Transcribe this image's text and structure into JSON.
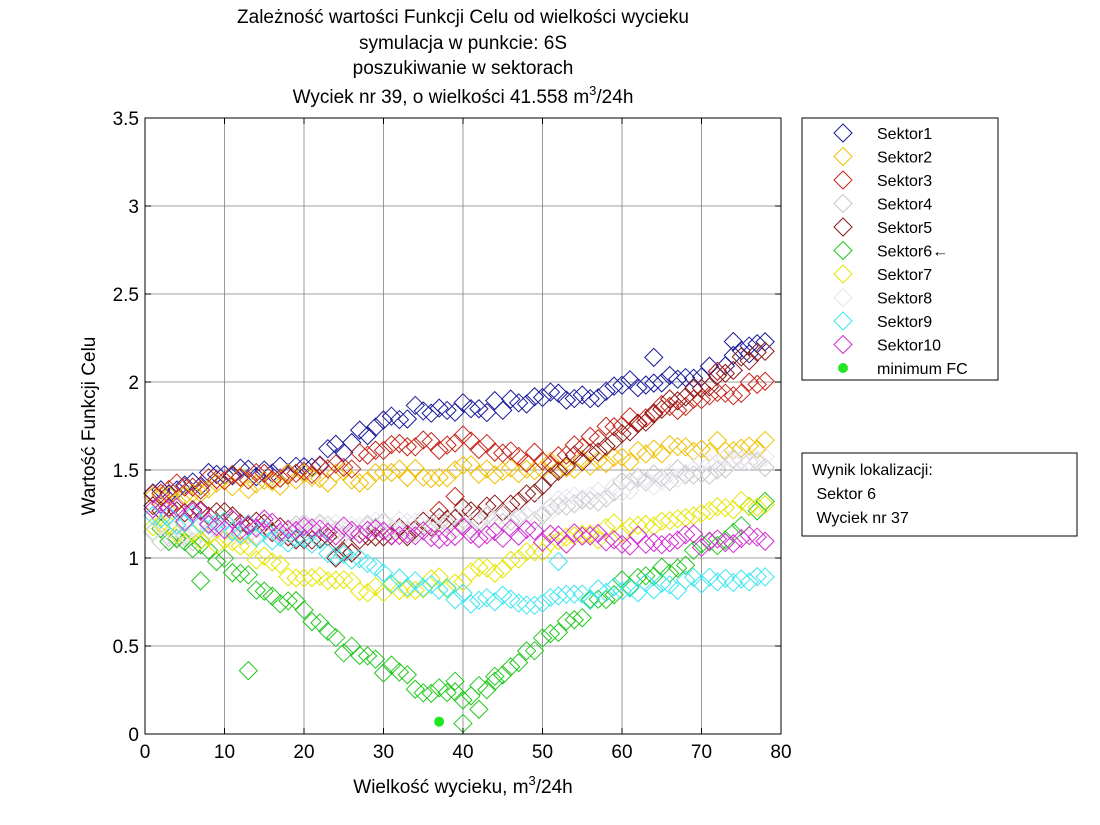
{
  "chart_data": {
    "type": "scatter",
    "title_lines": [
      "Zależność wartości Funkcji Celu od wielkości wycieku",
      "symulacja w punkcie: 6S",
      "poszukiwanie w sektorach"
    ],
    "title_last": {
      "prefix": "Wyciek nr 39, o wielkości 41.558 m",
      "sup": "3",
      "suffix": "/24h"
    },
    "xlabel": {
      "prefix": "Wielkość wycieku, m",
      "sup": "3",
      "suffix": "/24h"
    },
    "ylabel": "Wartość Funkcji Celu",
    "xlim": [
      0,
      80
    ],
    "ylim": [
      0,
      3.5
    ],
    "xticks": [
      0,
      10,
      20,
      30,
      40,
      50,
      60,
      70,
      80
    ],
    "yticks": [
      0,
      0.5,
      1,
      1.5,
      2,
      2.5,
      3,
      3.5
    ],
    "ytick_labels": [
      "0",
      "0.5",
      "1",
      "1.5",
      "2",
      "2.5",
      "3",
      "3.5"
    ],
    "grid": true,
    "legend_placement": "outside-top-right",
    "series": [
      {
        "name": "Sektor1",
        "color": "#1a1a9c",
        "marker": "diamond",
        "anchors": [
          [
            1,
            1.37
          ],
          [
            10,
            1.48
          ],
          [
            20,
            1.52
          ],
          [
            25,
            1.63
          ],
          [
            30,
            1.78
          ],
          [
            35,
            1.84
          ],
          [
            40,
            1.86
          ],
          [
            45,
            1.86
          ],
          [
            50,
            1.92
          ],
          [
            55,
            1.93
          ],
          [
            60,
            1.97
          ],
          [
            65,
            2.0
          ],
          [
            70,
            2.05
          ],
          [
            75,
            2.15
          ],
          [
            78,
            2.2
          ]
        ],
        "extra": [
          [
            64,
            2.14
          ],
          [
            74,
            2.23
          ],
          [
            76,
            2.16
          ]
        ]
      },
      {
        "name": "Sektor2",
        "color": "#f0c000",
        "marker": "diamond",
        "anchors": [
          [
            1,
            1.33
          ],
          [
            10,
            1.42
          ],
          [
            20,
            1.45
          ],
          [
            30,
            1.47
          ],
          [
            40,
            1.5
          ],
          [
            50,
            1.52
          ],
          [
            60,
            1.58
          ],
          [
            70,
            1.63
          ],
          [
            78,
            1.66
          ]
        ]
      },
      {
        "name": "Sektor3",
        "color": "#c8281c",
        "marker": "diamond",
        "anchors": [
          [
            1,
            1.37
          ],
          [
            10,
            1.44
          ],
          [
            20,
            1.46
          ],
          [
            25,
            1.52
          ],
          [
            30,
            1.62
          ],
          [
            40,
            1.66
          ],
          [
            45,
            1.62
          ],
          [
            50,
            1.55
          ],
          [
            55,
            1.65
          ],
          [
            60,
            1.76
          ],
          [
            65,
            1.84
          ],
          [
            70,
            1.92
          ],
          [
            78,
            2.0
          ]
        ],
        "extra": [
          [
            37,
            1.27
          ],
          [
            39,
            1.35
          ],
          [
            72,
            2.06
          ]
        ]
      },
      {
        "name": "Sektor4",
        "color": "#c8c8c8",
        "marker": "diamond",
        "anchors": [
          [
            1,
            1.12
          ],
          [
            10,
            1.14
          ],
          [
            20,
            1.16
          ],
          [
            30,
            1.17
          ],
          [
            40,
            1.18
          ],
          [
            50,
            1.25
          ],
          [
            55,
            1.32
          ],
          [
            60,
            1.4
          ],
          [
            65,
            1.46
          ],
          [
            70,
            1.5
          ],
          [
            78,
            1.55
          ]
        ]
      },
      {
        "name": "Sektor5",
        "color": "#8b1a1a",
        "marker": "diamond",
        "anchors": [
          [
            1,
            1.3
          ],
          [
            10,
            1.25
          ],
          [
            15,
            1.2
          ],
          [
            20,
            1.12
          ],
          [
            25,
            1.06
          ],
          [
            30,
            1.1
          ],
          [
            35,
            1.2
          ],
          [
            40,
            1.25
          ],
          [
            45,
            1.3
          ],
          [
            50,
            1.43
          ],
          [
            55,
            1.58
          ],
          [
            60,
            1.72
          ],
          [
            65,
            1.86
          ],
          [
            70,
            1.95
          ],
          [
            75,
            2.12
          ],
          [
            78,
            2.18
          ]
        ],
        "extra": [
          [
            24,
            1.0
          ],
          [
            26,
            1.03
          ]
        ]
      },
      {
        "name": "Sektor6←",
        "color": "#22c81e",
        "marker": "diamond",
        "anchors": [
          [
            1,
            1.15
          ],
          [
            5,
            1.1
          ],
          [
            10,
            0.98
          ],
          [
            15,
            0.82
          ],
          [
            20,
            0.72
          ],
          [
            25,
            0.5
          ],
          [
            30,
            0.38
          ],
          [
            35,
            0.25
          ],
          [
            40,
            0.2
          ],
          [
            45,
            0.33
          ],
          [
            50,
            0.55
          ],
          [
            55,
            0.7
          ],
          [
            60,
            0.84
          ],
          [
            65,
            0.92
          ],
          [
            70,
            1.05
          ],
          [
            75,
            1.2
          ],
          [
            78,
            1.36
          ]
        ],
        "extra": [
          [
            7,
            0.87
          ],
          [
            13,
            0.36
          ],
          [
            40,
            0.06
          ],
          [
            42,
            0.14
          ],
          [
            39,
            0.3
          ],
          [
            44,
            0.3
          ]
        ]
      },
      {
        "name": "Sektor7",
        "color": "#e6e600",
        "marker": "diamond",
        "anchors": [
          [
            1,
            1.2
          ],
          [
            10,
            1.1
          ],
          [
            15,
            0.98
          ],
          [
            20,
            0.9
          ],
          [
            25,
            0.84
          ],
          [
            30,
            0.82
          ],
          [
            35,
            0.84
          ],
          [
            40,
            0.88
          ],
          [
            45,
            0.95
          ],
          [
            50,
            1.05
          ],
          [
            55,
            1.12
          ],
          [
            60,
            1.17
          ],
          [
            65,
            1.22
          ],
          [
            70,
            1.28
          ],
          [
            78,
            1.33
          ]
        ]
      },
      {
        "name": "Sektor8",
        "color": "#e8e4ee",
        "marker": "diamond",
        "anchors": [
          [
            1,
            1.18
          ],
          [
            10,
            1.16
          ],
          [
            20,
            1.16
          ],
          [
            30,
            1.18
          ],
          [
            40,
            1.2
          ],
          [
            50,
            1.28
          ],
          [
            60,
            1.4
          ],
          [
            70,
            1.52
          ],
          [
            78,
            1.6
          ]
        ]
      },
      {
        "name": "Sektor9",
        "color": "#3ce6f0",
        "marker": "diamond",
        "anchors": [
          [
            1,
            1.25
          ],
          [
            10,
            1.18
          ],
          [
            20,
            1.1
          ],
          [
            25,
            1.02
          ],
          [
            30,
            0.9
          ],
          [
            35,
            0.82
          ],
          [
            40,
            0.78
          ],
          [
            45,
            0.76
          ],
          [
            50,
            0.76
          ],
          [
            55,
            0.78
          ],
          [
            60,
            0.82
          ],
          [
            65,
            0.84
          ],
          [
            70,
            0.86
          ],
          [
            78,
            0.9
          ]
        ],
        "extra": [
          [
            52,
            0.98
          ]
        ]
      },
      {
        "name": "Sektor10",
        "color": "#d22cd2",
        "marker": "diamond",
        "anchors": [
          [
            1,
            1.28
          ],
          [
            10,
            1.2
          ],
          [
            20,
            1.17
          ],
          [
            30,
            1.15
          ],
          [
            40,
            1.14
          ],
          [
            50,
            1.12
          ],
          [
            60,
            1.1
          ],
          [
            70,
            1.1
          ],
          [
            78,
            1.12
          ]
        ]
      }
    ],
    "minimum": {
      "name": "minimum FC",
      "color": "#22e622",
      "x": 37,
      "y": 0.07
    },
    "result_box": {
      "lines": [
        "Wynik lokalizacji:",
        " Sektor 6",
        " Wyciek nr 37"
      ]
    }
  }
}
